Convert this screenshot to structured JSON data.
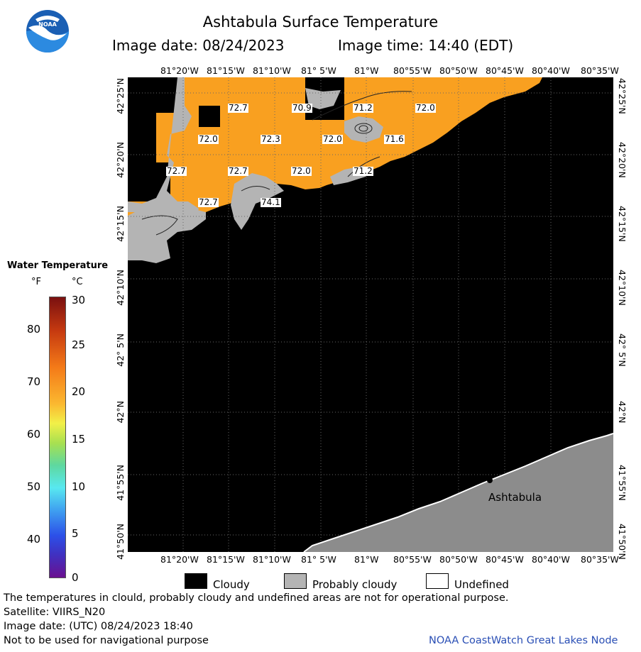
{
  "header": {
    "title": "Ashtabula Surface Temperature",
    "image_date": "Image date: 08/24/2023",
    "image_time": "Image time: 14:40 (EDT)"
  },
  "logo": {
    "text": "NOAA"
  },
  "map": {
    "lon_labels": [
      "81°20'W",
      "81°15'W",
      "81°10'W",
      "81° 5'W",
      "81°W",
      "80°55'W",
      "80°50'W",
      "80°45'W",
      "80°40'W",
      "80°35'W"
    ],
    "lat_labels": [
      "42°25'N",
      "42°20'N",
      "42°15'N",
      "42°10'N",
      "42° 5'N",
      "42°N",
      "41°55'N",
      "41°50'N"
    ],
    "temperature_labels": [
      "72.7",
      "70.9",
      "71.2",
      "72.0",
      "72.0",
      "72.3",
      "72.0",
      "71.6",
      "72.7",
      "72.7",
      "72.0",
      "71.2",
      "72.7",
      "74.1"
    ],
    "city": "Ashtabula",
    "colors": {
      "water_sst": "#f9a020",
      "cloud": "#000000",
      "probably_cloudy": "#b4b4b4",
      "land": "#8c8c8c"
    }
  },
  "colorbar": {
    "title": "Water Temperature",
    "unit_f": "°F",
    "unit_c": "°C",
    "f_ticks": [
      "80",
      "70",
      "60",
      "50",
      "40"
    ],
    "c_ticks": [
      "30",
      "25",
      "20",
      "15",
      "10",
      "5",
      "0"
    ]
  },
  "key": {
    "cloudy": "Cloudy",
    "probably_cloudy": "Probably cloudy",
    "undefined": "Undefined"
  },
  "footer": {
    "note": "The temperatures in clould, probably cloudy and undefined areas are not for operational purpose.",
    "satellite": "Satellite: VIIRS_N20",
    "utc_date": "Image date: (UTC) 08/24/2023  18:40",
    "nav": "Not to be used for navigational purpose",
    "credit": "NOAA CoastWatch Great Lakes Node"
  }
}
